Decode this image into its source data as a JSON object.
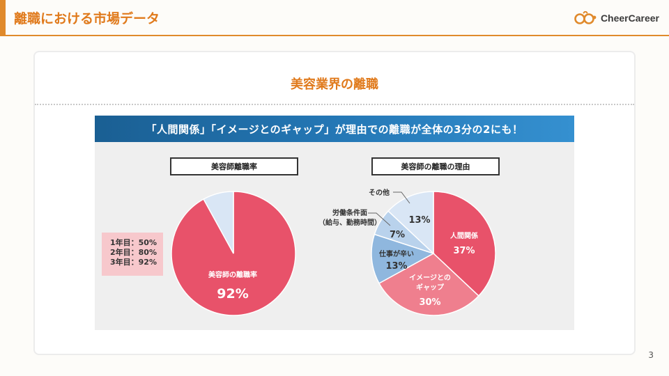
{
  "header": {
    "title": "離職における市場データ",
    "logo_text": "CheerCareer",
    "colors": {
      "accent": "#e08a2c"
    }
  },
  "card": {
    "title": "美容業界の離職"
  },
  "figure": {
    "banner": "「人間関係」「イメージとのギャップ」が理由での離職が全体の3分の2にも！",
    "left_panel": {
      "label": "美容師離職率",
      "rates": [
        "1年目：50%",
        "2年目：80%",
        "3年目：92%"
      ],
      "pie_label": "美容師の離職率",
      "pie_value": "92%"
    },
    "right_panel": {
      "label": "美容師の離職の理由",
      "slice_labels": {
        "human": {
          "name": "人間関係",
          "value": "37%"
        },
        "gap": {
          "line1": "イメージとの",
          "line2": "ギャップ",
          "value": "30%"
        },
        "work": {
          "name": "仕事が辛い",
          "value": "13%"
        },
        "labor": {
          "line1": "労働条件面",
          "line2": "（給与、勤務時間）",
          "value": "7%"
        },
        "other": {
          "name": "その他",
          "value": "13%"
        }
      }
    }
  },
  "chart_data": [
    {
      "type": "pie",
      "title": "美容師離職率",
      "slices": [
        {
          "label": "美容師の離職率",
          "value": 92,
          "color": "#e8526a"
        },
        {
          "label": "",
          "value": 8,
          "color": "#d9e6f5"
        }
      ]
    },
    {
      "type": "pie",
      "title": "美容師の離職の理由",
      "slices": [
        {
          "label": "人間関係",
          "value": 37,
          "color": "#e8526a"
        },
        {
          "label": "イメージとのギャップ",
          "value": 30,
          "color": "#ef7f8e"
        },
        {
          "label": "仕事が辛い",
          "value": 13,
          "color": "#8fb7de"
        },
        {
          "label": "労働条件面（給与、勤務時間）",
          "value": 7,
          "color": "#b9d2ec"
        },
        {
          "label": "その他",
          "value": 13,
          "color": "#d9e6f5"
        }
      ]
    }
  ],
  "page_number": "3"
}
